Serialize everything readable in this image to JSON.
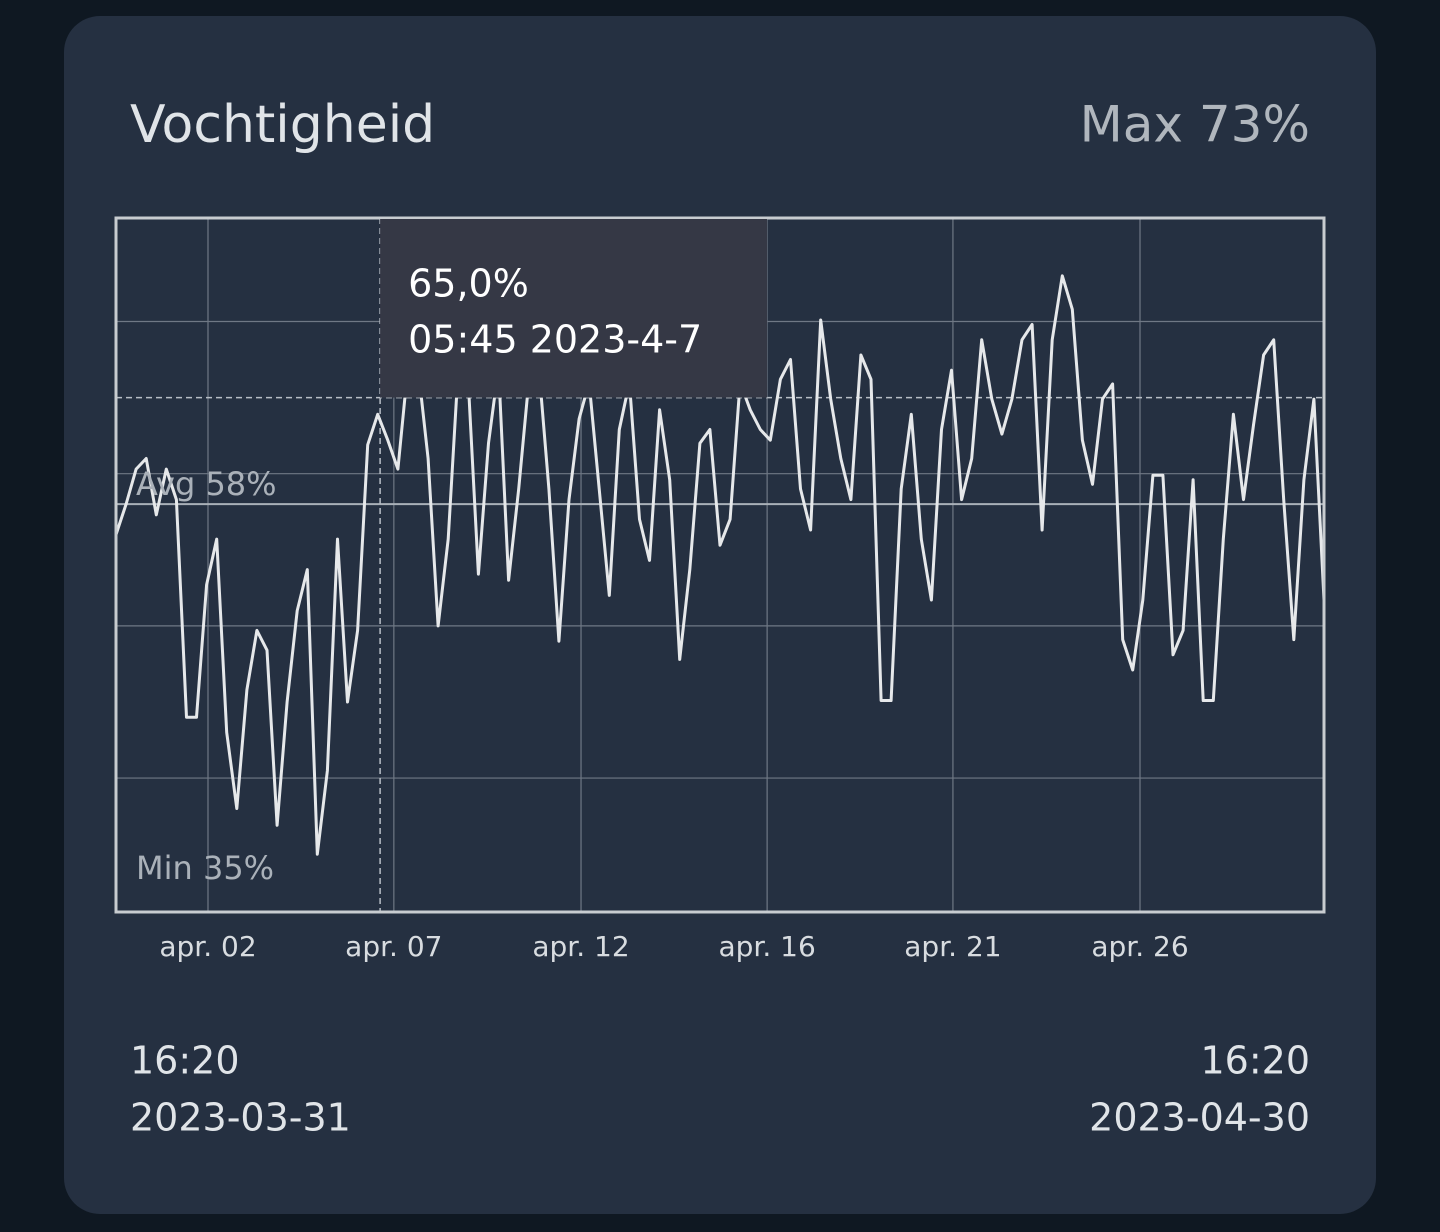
{
  "chart_data": {
    "type": "line",
    "title": "Vochtigheid",
    "max": {
      "value": 73,
      "label": "Max 73%"
    },
    "avg": {
      "value": 58,
      "label": "Avg 58%"
    },
    "min": {
      "value": 35,
      "label": "Min 35%"
    },
    "xlim": [
      "2023-03-31 16:20",
      "2023-04-30 16:20"
    ],
    "xticks": [
      {
        "value": "2023-04-02 23:10",
        "label": "apr. 02"
      },
      {
        "value": "2023-04-07 13:56",
        "label": "apr. 07"
      },
      {
        "value": "2023-04-12 05:30",
        "label": "apr. 12"
      },
      {
        "value": "2023-04-16 20:25",
        "label": "apr. 16"
      },
      {
        "value": "2023-04-21 11:10",
        "label": "apr. 21"
      },
      {
        "value": "2023-04-26 02:40",
        "label": "apr. 26"
      }
    ],
    "ylim": [
      31.2,
      76.8
    ],
    "yticks": [
      40,
      50,
      60,
      70
    ],
    "grid": true,
    "x": [
      "2023-03-31 16:20",
      "2023-03-31 22:20",
      "2023-04-01 04:20",
      "2023-04-01 10:20",
      "2023-04-01 16:20",
      "2023-04-01 22:20",
      "2023-04-02 04:20",
      "2023-04-02 10:20",
      "2023-04-02 16:20",
      "2023-04-02 22:20",
      "2023-04-03 04:20",
      "2023-04-03 10:20",
      "2023-04-03 16:20",
      "2023-04-03 22:20",
      "2023-04-04 04:20",
      "2023-04-04 10:20",
      "2023-04-04 16:20",
      "2023-04-04 22:20",
      "2023-04-05 04:20",
      "2023-04-05 10:20",
      "2023-04-05 16:20",
      "2023-04-05 22:20",
      "2023-04-06 04:20",
      "2023-04-06 10:20",
      "2023-04-06 16:20",
      "2023-04-06 22:20",
      "2023-04-07 04:20",
      "2023-04-07 10:20",
      "2023-04-07 16:20",
      "2023-04-07 22:20",
      "2023-04-08 04:20",
      "2023-04-08 10:20",
      "2023-04-08 16:20",
      "2023-04-08 22:20",
      "2023-04-09 04:20",
      "2023-04-09 10:20",
      "2023-04-09 16:20",
      "2023-04-09 22:20",
      "2023-04-10 04:20",
      "2023-04-10 10:20",
      "2023-04-10 16:20",
      "2023-04-10 22:20",
      "2023-04-11 04:20",
      "2023-04-11 10:20",
      "2023-04-11 16:20",
      "2023-04-11 22:20",
      "2023-04-12 04:20",
      "2023-04-12 10:20",
      "2023-04-12 16:20",
      "2023-04-12 22:20",
      "2023-04-13 04:20",
      "2023-04-13 10:20",
      "2023-04-13 16:20",
      "2023-04-13 22:20",
      "2023-04-14 04:20",
      "2023-04-14 10:20",
      "2023-04-14 16:20",
      "2023-04-14 22:20",
      "2023-04-15 04:20",
      "2023-04-15 10:20",
      "2023-04-15 16:20",
      "2023-04-15 22:20",
      "2023-04-16 04:20",
      "2023-04-16 10:20",
      "2023-04-16 16:20",
      "2023-04-16 22:20",
      "2023-04-17 04:20",
      "2023-04-17 10:20",
      "2023-04-17 16:20",
      "2023-04-17 22:20",
      "2023-04-18 04:20",
      "2023-04-18 10:20",
      "2023-04-18 16:20",
      "2023-04-18 22:20",
      "2023-04-19 04:20",
      "2023-04-19 10:20",
      "2023-04-19 16:20",
      "2023-04-19 22:20",
      "2023-04-20 04:20",
      "2023-04-20 10:20",
      "2023-04-20 16:20",
      "2023-04-20 22:20",
      "2023-04-21 04:20",
      "2023-04-21 10:20",
      "2023-04-21 16:20",
      "2023-04-21 22:20",
      "2023-04-22 04:20",
      "2023-04-22 10:20",
      "2023-04-22 16:20",
      "2023-04-22 22:20",
      "2023-04-23 04:20",
      "2023-04-23 10:20",
      "2023-04-23 16:20",
      "2023-04-23 22:20",
      "2023-04-24 04:20",
      "2023-04-24 10:20",
      "2023-04-24 16:20",
      "2023-04-24 22:20",
      "2023-04-25 04:20",
      "2023-04-25 10:20",
      "2023-04-25 16:20",
      "2023-04-25 22:20",
      "2023-04-26 04:20",
      "2023-04-26 10:20",
      "2023-04-26 16:20",
      "2023-04-26 22:20",
      "2023-04-27 04:20",
      "2023-04-27 10:20",
      "2023-04-27 16:20",
      "2023-04-27 22:20",
      "2023-04-28 04:20",
      "2023-04-28 10:20",
      "2023-04-28 16:20",
      "2023-04-28 22:20",
      "2023-04-29 04:20",
      "2023-04-29 10:20",
      "2023-04-29 16:20",
      "2023-04-29 22:20",
      "2023-04-30 04:20",
      "2023-04-30 10:20",
      "2023-04-30 16:20"
    ],
    "series": [
      {
        "color": "#e6e8ea",
        "values": [
          56,
          58,
          60.3,
          61,
          57.3,
          60.3,
          58.3,
          44,
          44,
          52.7,
          55.7,
          43,
          38,
          45.8,
          49.7,
          48.4,
          36.9,
          45,
          51,
          53.7,
          35,
          40.5,
          55.7,
          45,
          49.7,
          61.9,
          63.9,
          62.2,
          60.3,
          67,
          67,
          61,
          50,
          55.7,
          67,
          66,
          53.4,
          62,
          67,
          53,
          59,
          66,
          67,
          59,
          49,
          58.3,
          63.6,
          66,
          59,
          52,
          62.9,
          66,
          57,
          54.3,
          64.2,
          59.6,
          47.8,
          53.7,
          62,
          62.9,
          55.3,
          57,
          66,
          64.2,
          62.9,
          62.2,
          66.2,
          67.5,
          59,
          56.3,
          70.1,
          64.9,
          61,
          58.3,
          67.8,
          66.2,
          45.1,
          45.1,
          59,
          63.9,
          55.7,
          51.7,
          62.9,
          66.8,
          58.3,
          61,
          68.8,
          64.9,
          62.6,
          64.9,
          68.8,
          69.8,
          56.3,
          68.8,
          73,
          70.8,
          62.2,
          59.3,
          64.9,
          65.9,
          49.1,
          47.1,
          51.7,
          59.9,
          59.9,
          48.1,
          49.7,
          59.6,
          45.1,
          45.1,
          55.7,
          63.9,
          58.3,
          63.2,
          67.8,
          68.8,
          58.3,
          49.1,
          59.6,
          64.9,
          51.7
        ]
      }
    ],
    "tooltip": {
      "x": "2023-04-07 05:45",
      "value": 65,
      "value_label": "65,0%",
      "time_label": "05:45 2023-4-7"
    },
    "range_start": {
      "time": "16:20",
      "date": "2023-03-31"
    },
    "range_end": {
      "time": "16:20",
      "date": "2023-04-30"
    }
  }
}
